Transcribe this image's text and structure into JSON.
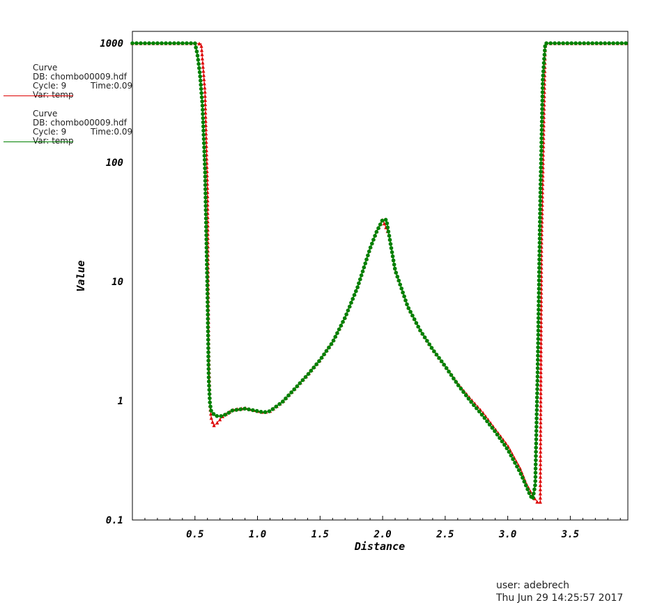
{
  "chart_data": {
    "type": "line",
    "xlabel": "Distance",
    "ylabel": "Value",
    "xlim": [
      0,
      3.96
    ],
    "ylim": [
      0.1,
      1000
    ],
    "y_scale": "log",
    "x_ticks": [
      "0.5",
      "1.0",
      "1.5",
      "2.0",
      "2.5",
      "3.0",
      "3.5"
    ],
    "y_ticks": [
      "0.1",
      "1",
      "10",
      "100",
      "1000"
    ],
    "series": [
      {
        "color": "#dd0000",
        "marker": "triangle",
        "x": [
          0.0,
          0.5,
          0.55,
          0.58,
          0.6,
          0.61,
          0.62,
          0.63,
          0.65,
          0.67,
          0.72,
          0.8,
          0.9,
          1.0,
          1.05,
          1.1,
          1.2,
          1.3,
          1.4,
          1.5,
          1.6,
          1.7,
          1.8,
          1.9,
          1.95,
          2.0,
          2.05,
          2.1,
          2.2,
          2.3,
          2.4,
          2.5,
          2.6,
          2.7,
          2.8,
          2.9,
          3.0,
          3.1,
          3.15,
          3.2,
          3.24,
          3.26,
          3.27,
          3.3,
          3.35,
          3.5,
          3.96
        ],
        "y": [
          1000,
          1000,
          990,
          400,
          60,
          3,
          0.9,
          0.72,
          0.62,
          0.64,
          0.74,
          0.84,
          0.87,
          0.82,
          0.8,
          0.82,
          0.98,
          1.27,
          1.65,
          2.2,
          3.1,
          5.0,
          9.0,
          19,
          26,
          33,
          25,
          12.5,
          6.2,
          3.9,
          2.7,
          1.95,
          1.4,
          1.05,
          0.8,
          0.58,
          0.42,
          0.27,
          0.2,
          0.16,
          0.14,
          0.14,
          20,
          1000,
          1000,
          1000,
          1000
        ]
      },
      {
        "color": "#008000",
        "marker": "dot",
        "x": [
          0.0,
          0.5,
          0.52,
          0.54,
          0.56,
          0.58,
          0.6,
          0.61,
          0.62,
          0.63,
          0.66,
          0.7,
          0.75,
          0.8,
          0.9,
          1.0,
          1.05,
          1.1,
          1.2,
          1.3,
          1.4,
          1.5,
          1.6,
          1.7,
          1.8,
          1.9,
          1.95,
          2.0,
          2.03,
          2.05,
          2.1,
          2.2,
          2.3,
          2.4,
          2.5,
          2.6,
          2.7,
          2.8,
          2.9,
          3.0,
          3.1,
          3.15,
          3.18,
          3.2,
          3.22,
          3.24,
          3.26,
          3.28,
          3.3,
          3.35,
          3.5,
          3.96
        ],
        "y": [
          1000,
          1000,
          800,
          550,
          300,
          90,
          8,
          1.5,
          0.95,
          0.82,
          0.75,
          0.74,
          0.77,
          0.83,
          0.86,
          0.82,
          0.8,
          0.82,
          0.98,
          1.27,
          1.65,
          2.2,
          3.1,
          5.0,
          9.0,
          19,
          26,
          33,
          33,
          25,
          12.5,
          6.2,
          3.9,
          2.7,
          1.95,
          1.37,
          1.0,
          0.75,
          0.55,
          0.39,
          0.25,
          0.19,
          0.16,
          0.15,
          0.2,
          2.0,
          50,
          500,
          1000,
          1000,
          1000,
          1000
        ]
      }
    ]
  },
  "legend": [
    {
      "line1": "Curve",
      "line2": "DB: chombo00009.hdf",
      "line3": "Cycle: 9",
      "time": "Time:0.09",
      "line4": "Var: temp",
      "color": "#dd0000"
    },
    {
      "line1": "Curve",
      "line2": "DB: chombo00009.hdf",
      "line3": "Cycle: 9",
      "time": "Time:0.09",
      "line4": "Var: temp",
      "color": "#008000"
    }
  ],
  "footer": {
    "user": "user: adebrech",
    "date": "Thu Jun 29 14:25:57 2017"
  }
}
